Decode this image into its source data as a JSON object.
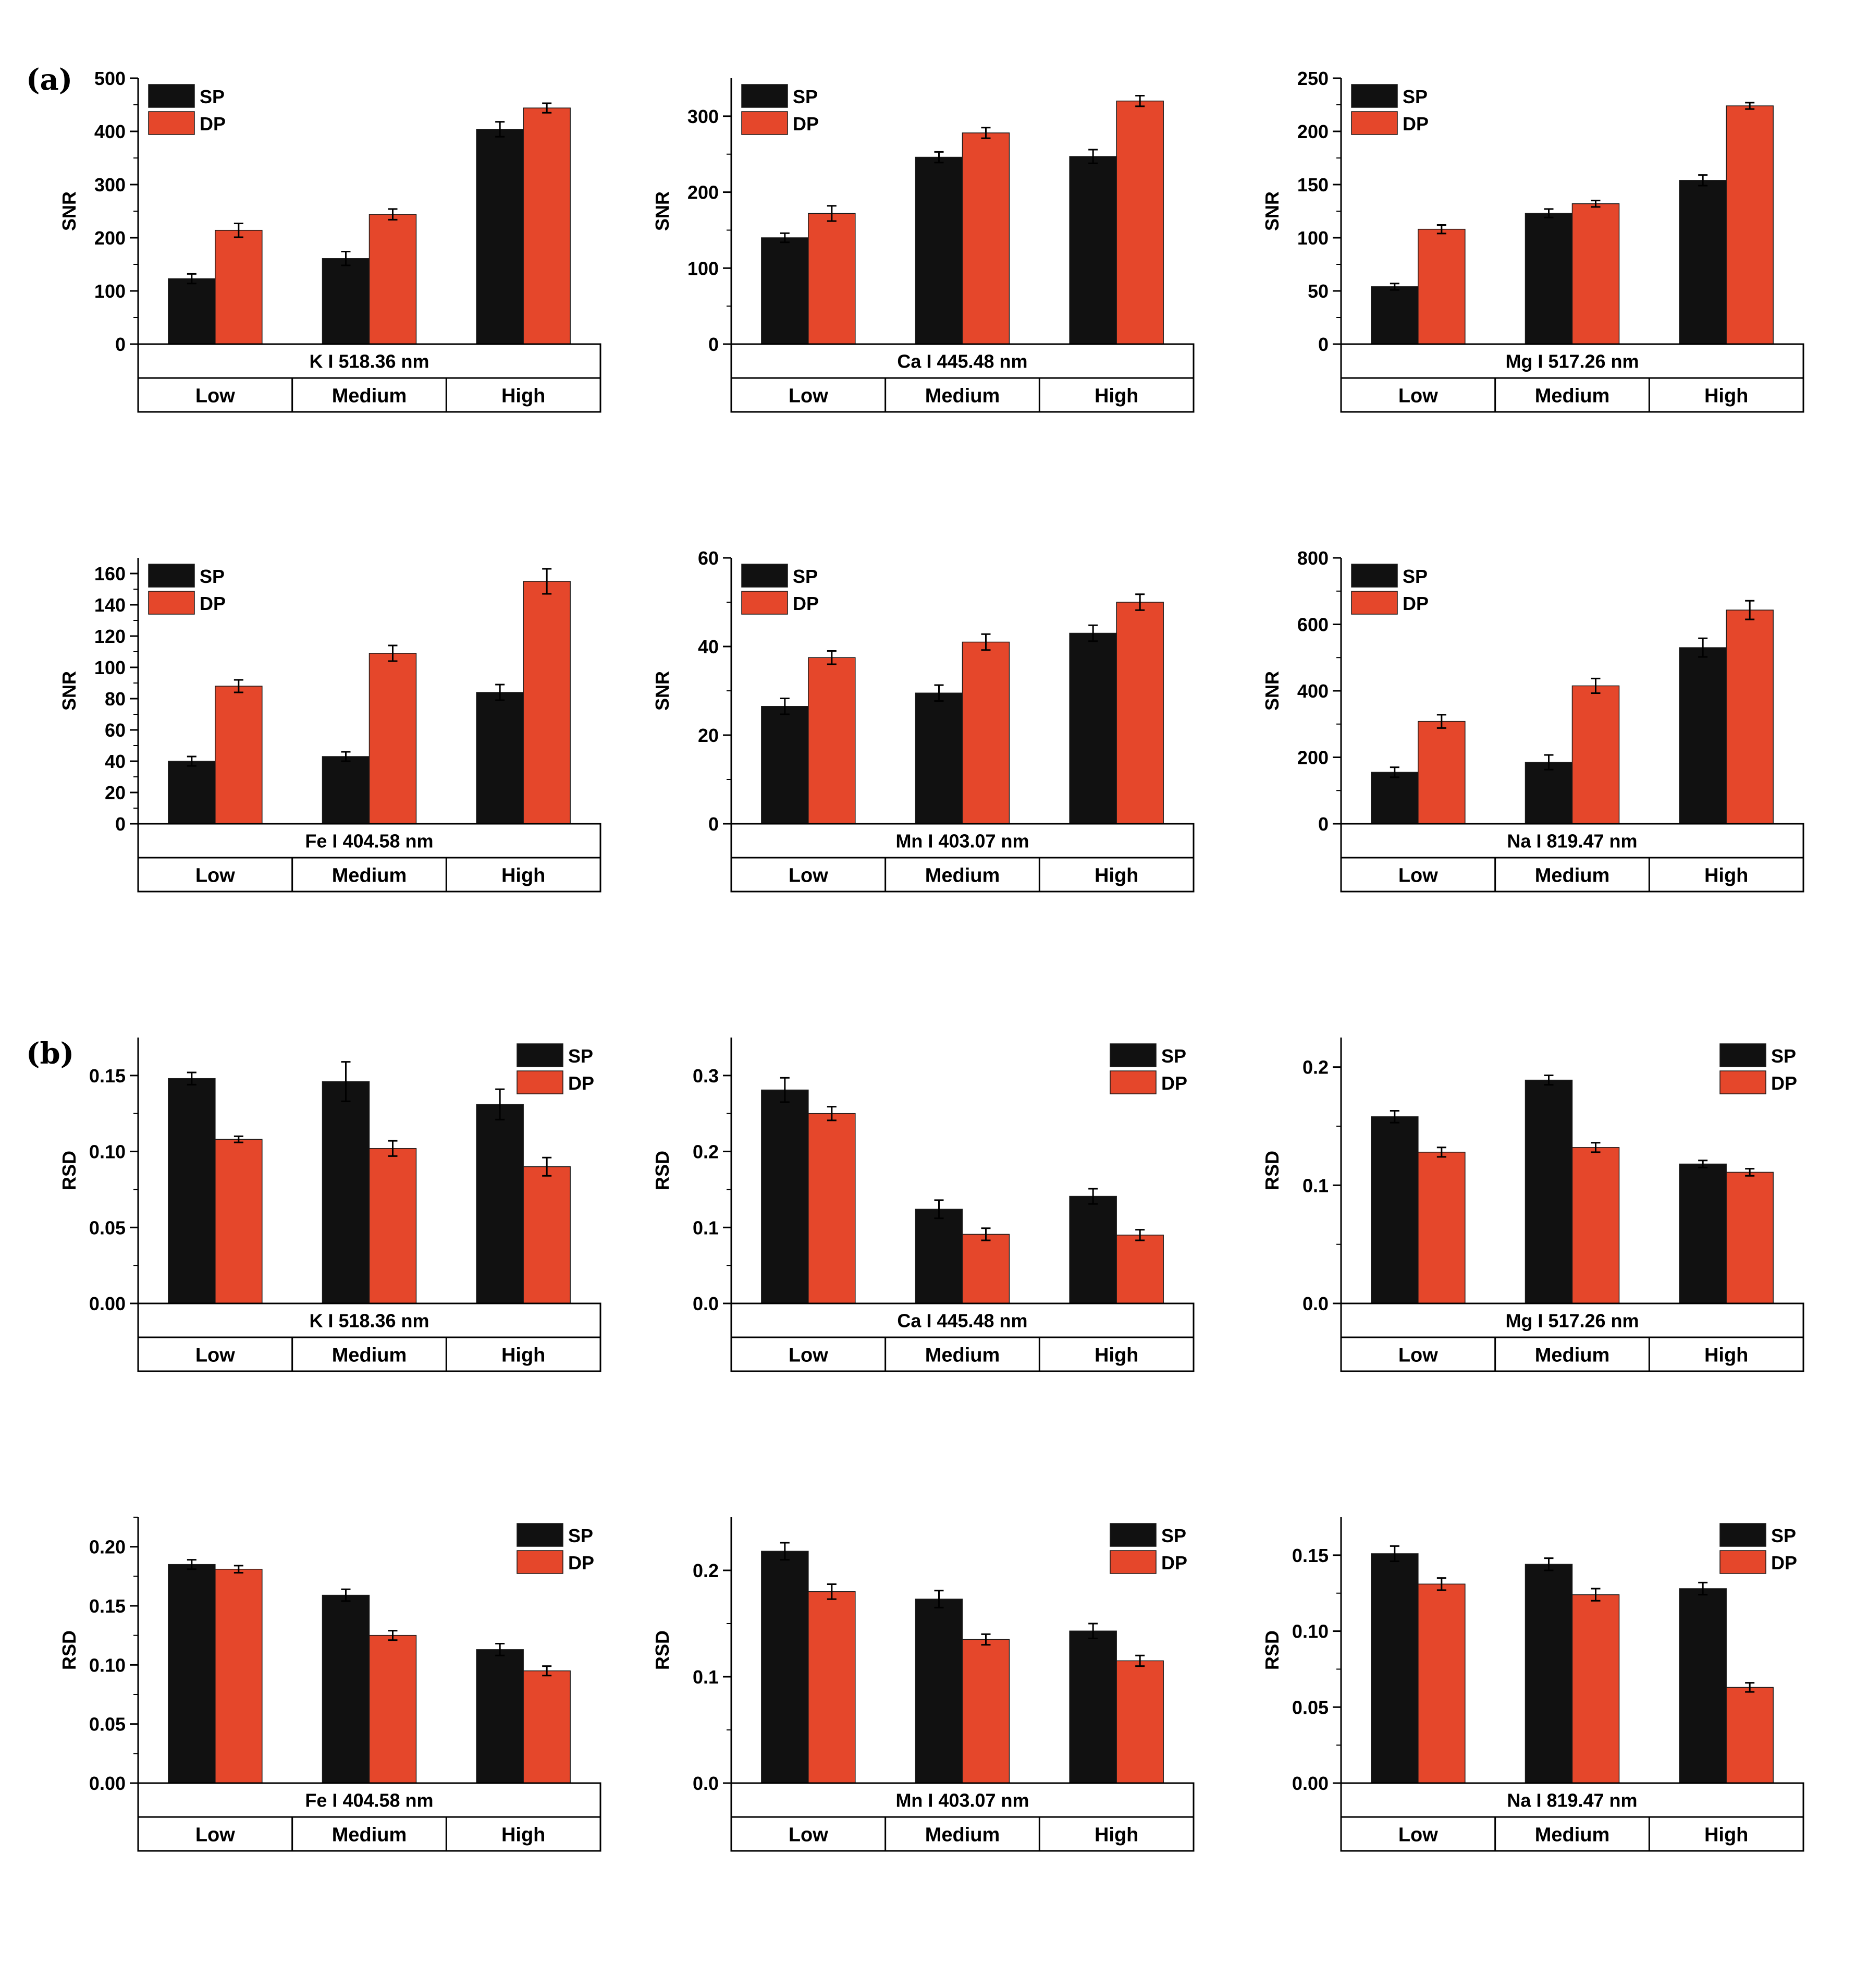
{
  "panel_labels": [
    "(a)",
    "(b)"
  ],
  "colors": {
    "SP": "#111111",
    "DP": "#E5472B"
  },
  "chart_data": [
    {
      "type": "bar",
      "panel": "(a)",
      "element_label": "K I 518.36 nm",
      "ylabel": "SNR",
      "ylim": [
        0,
        500
      ],
      "yticks": [
        0,
        100,
        200,
        300,
        400,
        500
      ],
      "tick_labels": [
        "0",
        "100",
        "200",
        "300",
        "400",
        "500"
      ],
      "categories": [
        "Low",
        "Medium",
        "High"
      ],
      "legend": "top-left",
      "series": [
        {
          "name": "SP",
          "values": [
            123,
            161,
            404
          ],
          "errors": [
            9,
            13,
            14
          ]
        },
        {
          "name": "DP",
          "values": [
            214,
            244,
            444
          ],
          "errors": [
            13,
            10,
            9
          ]
        }
      ]
    },
    {
      "type": "bar",
      "panel": "(a)",
      "element_label": "Ca I 445.48 nm",
      "ylabel": "SNR",
      "ylim": [
        0,
        350
      ],
      "yticks": [
        0,
        100,
        200,
        300
      ],
      "tick_labels": [
        "0",
        "100",
        "200",
        "300"
      ],
      "categories": [
        "Low",
        "Medium",
        "High"
      ],
      "legend": "top-left",
      "series": [
        {
          "name": "SP",
          "values": [
            140,
            246,
            247
          ],
          "errors": [
            6,
            7,
            9
          ]
        },
        {
          "name": "DP",
          "values": [
            172,
            278,
            320
          ],
          "errors": [
            10,
            7,
            7
          ]
        }
      ]
    },
    {
      "type": "bar",
      "panel": "(a)",
      "element_label": "Mg I 517.26 nm",
      "ylabel": "SNR",
      "ylim": [
        0,
        250
      ],
      "yticks": [
        0,
        50,
        100,
        150,
        200,
        250
      ],
      "tick_labels": [
        "0",
        "50",
        "100",
        "150",
        "200",
        "250"
      ],
      "categories": [
        "Low",
        "Medium",
        "High"
      ],
      "legend": "top-left",
      "series": [
        {
          "name": "SP",
          "values": [
            54,
            123,
            154
          ],
          "errors": [
            3,
            4,
            5
          ]
        },
        {
          "name": "DP",
          "values": [
            108,
            132,
            224
          ],
          "errors": [
            4,
            3,
            3
          ]
        }
      ]
    },
    {
      "type": "bar",
      "panel": "(a)",
      "element_label": "Fe I 404.58 nm",
      "ylabel": "SNR",
      "ylim": [
        0,
        170
      ],
      "yticks": [
        0,
        20,
        40,
        60,
        80,
        100,
        120,
        140,
        160
      ],
      "tick_labels": [
        "0",
        "20",
        "40",
        "60",
        "80",
        "100",
        "120",
        "140",
        "160"
      ],
      "categories": [
        "Low",
        "Medium",
        "High"
      ],
      "legend": "top-left",
      "series": [
        {
          "name": "SP",
          "values": [
            40,
            43,
            84
          ],
          "errors": [
            3,
            3,
            5
          ]
        },
        {
          "name": "DP",
          "values": [
            88,
            109,
            155
          ],
          "errors": [
            4,
            5,
            8
          ]
        }
      ]
    },
    {
      "type": "bar",
      "panel": "(a)",
      "element_label": "Mn I 403.07 nm",
      "ylabel": "SNR",
      "ylim": [
        0,
        60
      ],
      "yticks": [
        0,
        20,
        40,
        60
      ],
      "tick_labels": [
        "0",
        "20",
        "40",
        "60"
      ],
      "categories": [
        "Low",
        "Medium",
        "High"
      ],
      "legend": "top-left",
      "series": [
        {
          "name": "SP",
          "values": [
            26.5,
            29.5,
            43
          ],
          "errors": [
            1.8,
            1.8,
            1.8
          ]
        },
        {
          "name": "DP",
          "values": [
            37.5,
            41,
            50
          ],
          "errors": [
            1.5,
            1.8,
            1.8
          ]
        }
      ]
    },
    {
      "type": "bar",
      "panel": "(a)",
      "element_label": "Na I 819.47 nm",
      "ylabel": "SNR",
      "ylim": [
        0,
        800
      ],
      "yticks": [
        0,
        200,
        400,
        600,
        800
      ],
      "tick_labels": [
        "0",
        "200",
        "400",
        "600",
        "800"
      ],
      "categories": [
        "Low",
        "Medium",
        "High"
      ],
      "legend": "top-left",
      "series": [
        {
          "name": "SP",
          "values": [
            155,
            185,
            530
          ],
          "errors": [
            15,
            22,
            28
          ]
        },
        {
          "name": "DP",
          "values": [
            308,
            415,
            643
          ],
          "errors": [
            20,
            22,
            28
          ]
        }
      ]
    },
    {
      "type": "bar",
      "panel": "(b)",
      "element_label": "K I 518.36 nm",
      "ylabel": "RSD",
      "ylim": [
        0,
        0.175
      ],
      "yticks": [
        0,
        0.05,
        0.1,
        0.15
      ],
      "tick_labels": [
        "0.00",
        "0.05",
        "0.10",
        "0.15"
      ],
      "categories": [
        "Low",
        "Medium",
        "High"
      ],
      "legend": "top-right",
      "series": [
        {
          "name": "SP",
          "values": [
            0.148,
            0.146,
            0.131
          ],
          "errors": [
            0.004,
            0.013,
            0.01
          ]
        },
        {
          "name": "DP",
          "values": [
            0.108,
            0.102,
            0.09
          ],
          "errors": [
            0.002,
            0.005,
            0.006
          ]
        }
      ]
    },
    {
      "type": "bar",
      "panel": "(b)",
      "element_label": "Ca I 445.48 nm",
      "ylabel": "RSD",
      "ylim": [
        0,
        0.35
      ],
      "yticks": [
        0,
        0.1,
        0.2,
        0.3
      ],
      "tick_labels": [
        "0.0",
        "0.1",
        "0.2",
        "0.3"
      ],
      "categories": [
        "Low",
        "Medium",
        "High"
      ],
      "legend": "top-right",
      "series": [
        {
          "name": "SP",
          "values": [
            0.281,
            0.124,
            0.141
          ],
          "errors": [
            0.016,
            0.012,
            0.01
          ]
        },
        {
          "name": "DP",
          "values": [
            0.25,
            0.091,
            0.09
          ],
          "errors": [
            0.009,
            0.008,
            0.007
          ]
        }
      ]
    },
    {
      "type": "bar",
      "panel": "(b)",
      "element_label": "Mg I 517.26 nm",
      "ylabel": "RSD",
      "ylim": [
        0,
        0.225
      ],
      "yticks": [
        0,
        0.1,
        0.2
      ],
      "tick_labels": [
        "0.0",
        "0.1",
        "0.2"
      ],
      "categories": [
        "Low",
        "Medium",
        "High"
      ],
      "legend": "top-right",
      "series": [
        {
          "name": "SP",
          "values": [
            0.158,
            0.189,
            0.118
          ],
          "errors": [
            0.005,
            0.004,
            0.003
          ]
        },
        {
          "name": "DP",
          "values": [
            0.128,
            0.132,
            0.111
          ],
          "errors": [
            0.004,
            0.004,
            0.003
          ]
        }
      ]
    },
    {
      "type": "bar",
      "panel": "(b)",
      "element_label": "Fe I 404.58 nm",
      "ylabel": "RSD",
      "ylim": [
        0,
        0.225
      ],
      "yticks": [
        0,
        0.05,
        0.1,
        0.15,
        0.2
      ],
      "tick_labels": [
        "0.00",
        "0.05",
        "0.10",
        "0.15",
        "0.20"
      ],
      "categories": [
        "Low",
        "Medium",
        "High"
      ],
      "legend": "top-right",
      "series": [
        {
          "name": "SP",
          "values": [
            0.185,
            0.159,
            0.113
          ],
          "errors": [
            0.004,
            0.005,
            0.005
          ]
        },
        {
          "name": "DP",
          "values": [
            0.181,
            0.125,
            0.095
          ],
          "errors": [
            0.003,
            0.004,
            0.004
          ]
        }
      ]
    },
    {
      "type": "bar",
      "panel": "(b)",
      "element_label": "Mn I 403.07 nm",
      "ylabel": "RSD",
      "ylim": [
        0,
        0.25
      ],
      "yticks": [
        0,
        0.1,
        0.2
      ],
      "tick_labels": [
        "0.0",
        "0.1",
        "0.2"
      ],
      "categories": [
        "Low",
        "Medium",
        "High"
      ],
      "legend": "top-right",
      "series": [
        {
          "name": "SP",
          "values": [
            0.218,
            0.173,
            0.143
          ],
          "errors": [
            0.008,
            0.008,
            0.007
          ]
        },
        {
          "name": "DP",
          "values": [
            0.18,
            0.135,
            0.115
          ],
          "errors": [
            0.007,
            0.005,
            0.005
          ]
        }
      ]
    },
    {
      "type": "bar",
      "panel": "(b)",
      "element_label": "Na I 819.47 nm",
      "ylabel": "RSD",
      "ylim": [
        0,
        0.175
      ],
      "yticks": [
        0,
        0.05,
        0.1,
        0.15
      ],
      "tick_labels": [
        "0.00",
        "0.05",
        "0.10",
        "0.15"
      ],
      "categories": [
        "Low",
        "Medium",
        "High"
      ],
      "legend": "top-right",
      "series": [
        {
          "name": "SP",
          "values": [
            0.151,
            0.144,
            0.128
          ],
          "errors": [
            0.005,
            0.004,
            0.004
          ]
        },
        {
          "name": "DP",
          "values": [
            0.131,
            0.124,
            0.063
          ],
          "errors": [
            0.004,
            0.004,
            0.003
          ]
        }
      ]
    }
  ]
}
